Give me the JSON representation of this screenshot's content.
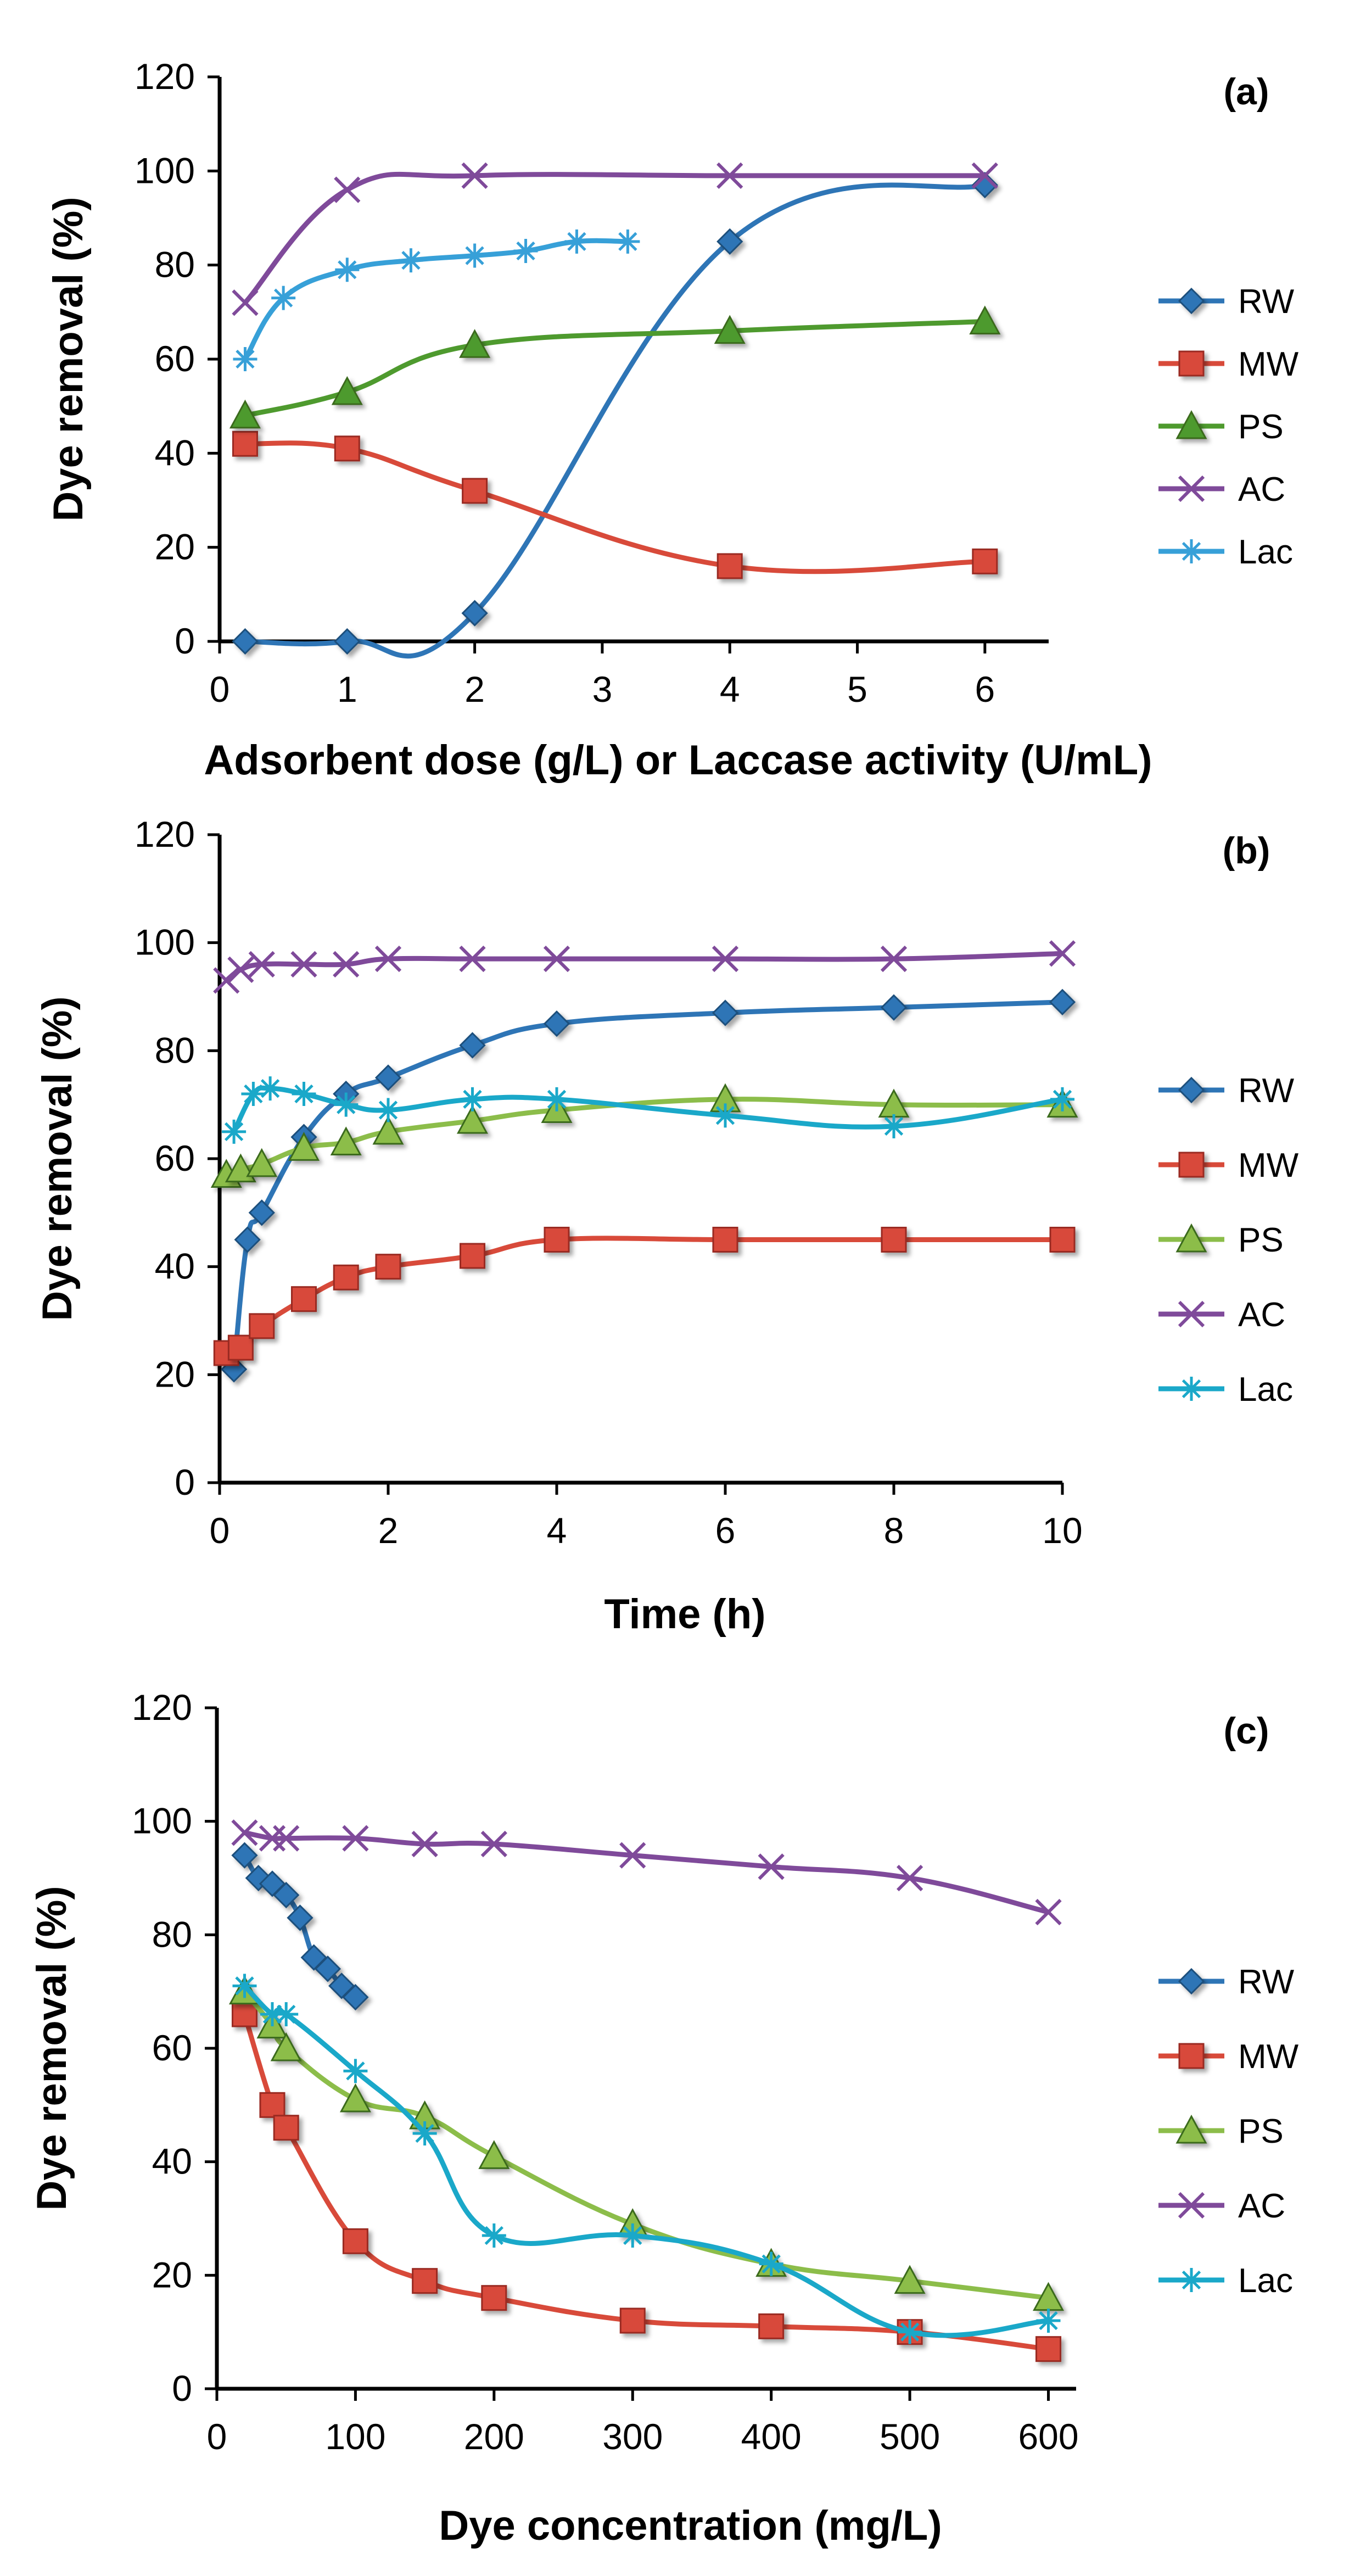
{
  "palette": {
    "RW": "#2e75b6",
    "MW": "#d84a3a",
    "PS_a": "#4e9a2e",
    "PS": "#8cbd4a",
    "AC": "#7f4a9a",
    "Lac_a": "#37a0d8",
    "Lac": "#1aa8c9"
  },
  "markers": {
    "RW": "diamond",
    "MW": "square",
    "PS": "triangle",
    "AC": "x",
    "Lac": "asterisk"
  },
  "chart_data": [
    {
      "type": "line",
      "panel_tag": "(a)",
      "xlabel": "Adsorbent dose (g/L) or Laccase activity (U/mL)",
      "ylabel": "Dye removal (%)",
      "xlim": [
        0,
        6.5
      ],
      "ylim": [
        0,
        120
      ],
      "xticks": [
        0,
        1,
        2,
        3,
        4,
        5,
        6
      ],
      "yticks": [
        0,
        20,
        40,
        60,
        80,
        100,
        120
      ],
      "grid": false,
      "legend_position": "right",
      "series": [
        {
          "name": "RW",
          "x": [
            0.2,
            1,
            2,
            4,
            6
          ],
          "y": [
            0,
            0,
            6,
            85,
            97
          ]
        },
        {
          "name": "MW",
          "x": [
            0.2,
            1,
            2,
            4,
            6
          ],
          "y": [
            42,
            41,
            32,
            16,
            17
          ]
        },
        {
          "name": "PS",
          "x": [
            0.2,
            1,
            2,
            4,
            6
          ],
          "y": [
            48,
            53,
            63,
            66,
            68
          ]
        },
        {
          "name": "AC",
          "x": [
            0.2,
            1,
            2,
            4,
            6
          ],
          "y": [
            72,
            96,
            99,
            99,
            99
          ]
        },
        {
          "name": "Lac",
          "x": [
            0.2,
            0.5,
            1,
            1.5,
            2,
            2.4,
            2.8,
            3.2
          ],
          "y": [
            60,
            73,
            79,
            81,
            82,
            83,
            85,
            85
          ]
        }
      ]
    },
    {
      "type": "line",
      "panel_tag": "(b)",
      "xlabel": "Time (h)",
      "ylabel": "Dye removal (%)",
      "xlim": [
        0,
        10
      ],
      "ylim": [
        0,
        120
      ],
      "xticks": [
        0,
        2,
        4,
        6,
        8,
        10
      ],
      "yticks": [
        0,
        20,
        40,
        60,
        80,
        100,
        120
      ],
      "grid": false,
      "legend_position": "right",
      "series": [
        {
          "name": "RW",
          "x": [
            0.17,
            0.33,
            0.5,
            1,
            1.5,
            2,
            3,
            4,
            6,
            8,
            10
          ],
          "y": [
            21,
            45,
            50,
            64,
            72,
            75,
            81,
            85,
            87,
            88,
            89
          ]
        },
        {
          "name": "MW",
          "x": [
            0.08,
            0.25,
            0.5,
            1,
            1.5,
            2,
            3,
            4,
            6,
            8,
            10
          ],
          "y": [
            24,
            25,
            29,
            34,
            38,
            40,
            42,
            45,
            45,
            45,
            45
          ]
        },
        {
          "name": "PS",
          "x": [
            0.08,
            0.25,
            0.5,
            1,
            1.5,
            2,
            3,
            4,
            6,
            8,
            10
          ],
          "y": [
            57,
            58,
            59,
            62,
            63,
            65,
            67,
            69,
            71,
            70,
            70
          ]
        },
        {
          "name": "AC",
          "x": [
            0.08,
            0.25,
            0.5,
            1,
            1.5,
            2,
            3,
            4,
            6,
            8,
            10
          ],
          "y": [
            93,
            95,
            96,
            96,
            96,
            97,
            97,
            97,
            97,
            97,
            98
          ]
        },
        {
          "name": "Lac",
          "x": [
            0.17,
            0.4,
            0.6,
            1,
            1.5,
            2,
            3,
            4,
            6,
            8,
            10
          ],
          "y": [
            65,
            72,
            73,
            72,
            70,
            69,
            71,
            71,
            68,
            66,
            71
          ]
        }
      ]
    },
    {
      "type": "line",
      "panel_tag": "(c)",
      "xlabel": "Dye concentration (mg/L)",
      "ylabel": "Dye removal (%)",
      "xlim": [
        0,
        620
      ],
      "ylim": [
        0,
        120
      ],
      "xticks": [
        0,
        100,
        200,
        300,
        400,
        500,
        600
      ],
      "yticks": [
        0,
        20,
        40,
        60,
        80,
        100,
        120
      ],
      "grid": false,
      "legend_position": "right",
      "series": [
        {
          "name": "RW",
          "x": [
            20,
            30,
            40,
            50,
            60,
            70,
            80,
            90,
            100
          ],
          "y": [
            94,
            90,
            89,
            87,
            83,
            76,
            74,
            71,
            69
          ]
        },
        {
          "name": "MW",
          "x": [
            20,
            40,
            50,
            100,
            150,
            200,
            300,
            400,
            500,
            600
          ],
          "y": [
            66,
            50,
            46,
            26,
            19,
            16,
            12,
            11,
            10,
            7
          ]
        },
        {
          "name": "PS",
          "x": [
            20,
            40,
            50,
            100,
            150,
            200,
            300,
            400,
            500,
            600
          ],
          "y": [
            70,
            64,
            60,
            51,
            48,
            41,
            29,
            22,
            19,
            16
          ]
        },
        {
          "name": "AC",
          "x": [
            20,
            40,
            50,
            100,
            150,
            200,
            300,
            400,
            500,
            600
          ],
          "y": [
            98,
            97,
            97,
            97,
            96,
            96,
            94,
            92,
            90,
            84
          ]
        },
        {
          "name": "Lac",
          "x": [
            20,
            40,
            50,
            100,
            150,
            200,
            300,
            400,
            500,
            600
          ],
          "y": [
            71,
            66,
            66,
            56,
            45,
            27,
            27,
            22,
            10,
            12
          ]
        }
      ]
    }
  ]
}
